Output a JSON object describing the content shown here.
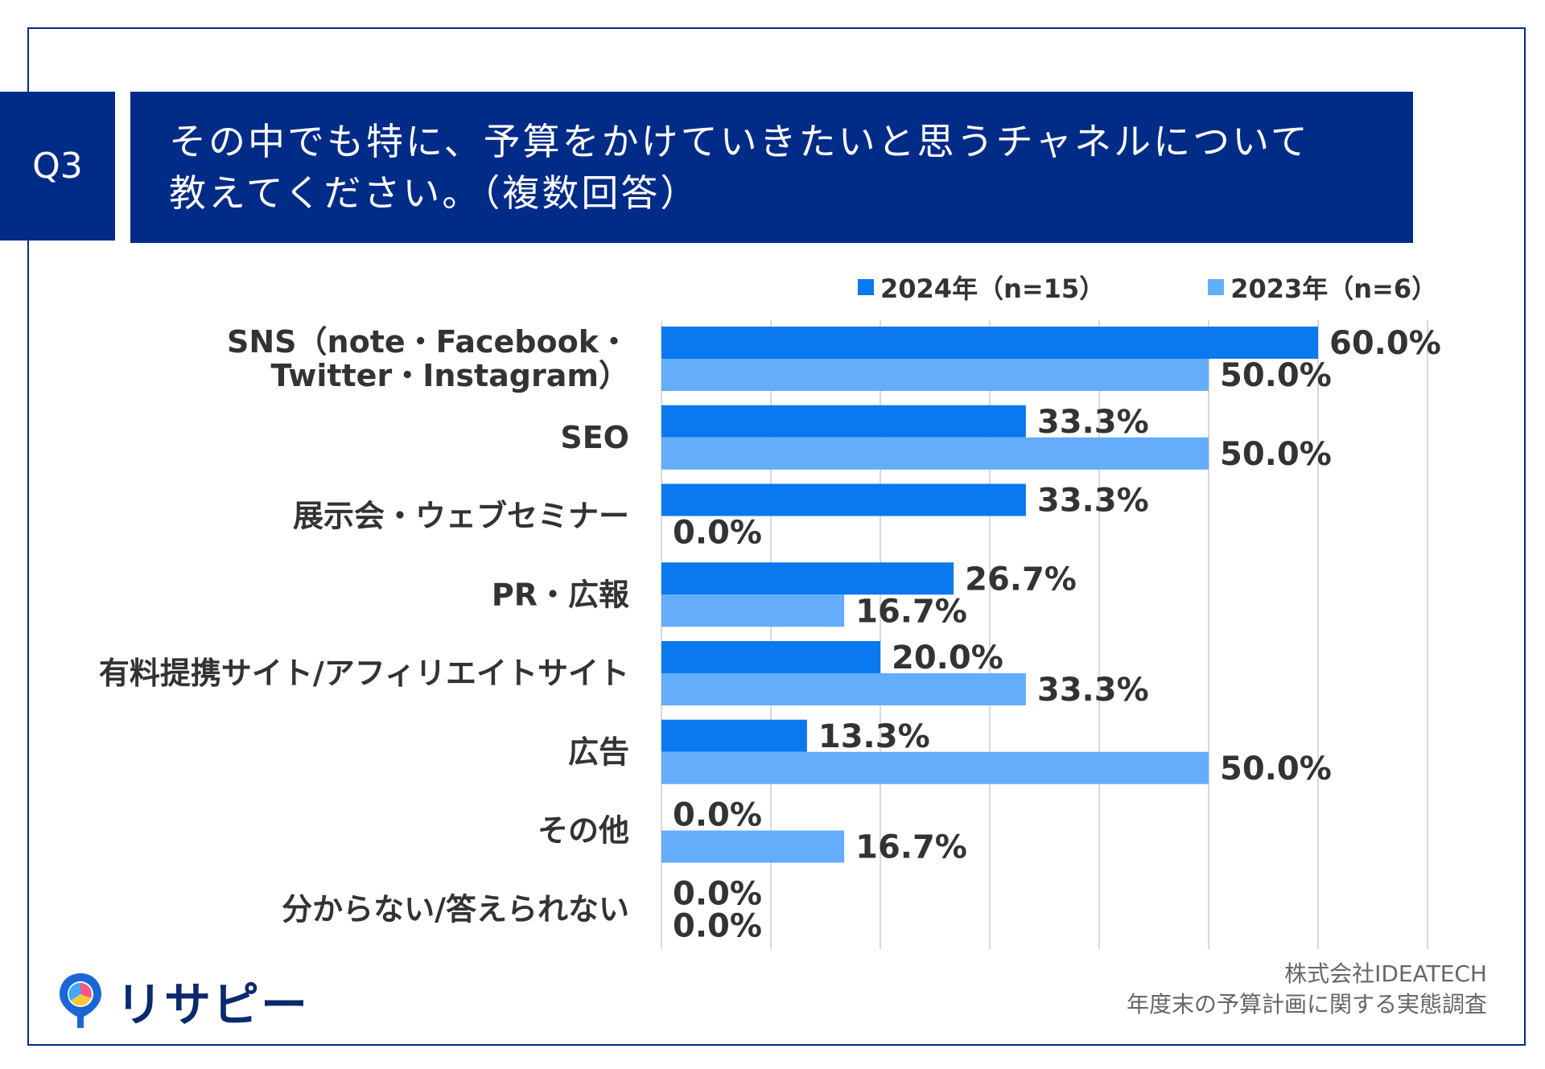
{
  "header": {
    "q_label": "Q3",
    "title_line1": "その中でも特に、予算をかけていきたいと思うチャネルについて",
    "title_line2": "教えてください。（複数回答）"
  },
  "legend": [
    {
      "label": "2024年（n=15）",
      "color": "#0a78ee"
    },
    {
      "label": "2023年（n=6）",
      "color": "#64adfb"
    }
  ],
  "chart_data": {
    "type": "bar",
    "orientation": "horizontal",
    "categories": [
      [
        "SNS（note・Facebook・",
        "Twitter・Instagram）"
      ],
      [
        "SEO"
      ],
      [
        "展示会・ウェブセミナー"
      ],
      [
        "PR・広報"
      ],
      [
        "有料提携サイト/アフィリエイトサイト"
      ],
      [
        "広告"
      ],
      [
        "その他"
      ],
      [
        "分からない/答えられない"
      ]
    ],
    "series": [
      {
        "name": "2024年（n=15）",
        "color": "#0a78ee",
        "values": [
          60.0,
          33.3,
          33.3,
          26.7,
          20.0,
          13.3,
          0.0,
          0.0
        ],
        "labels": [
          "60.0%",
          "33.3%",
          "33.3%",
          "26.7%",
          "20.0%",
          "13.3%",
          "0.0%",
          "0.0%"
        ]
      },
      {
        "name": "2023年（n=6）",
        "color": "#64adfb",
        "values": [
          50.0,
          50.0,
          0.0,
          16.7,
          33.3,
          50.0,
          16.7,
          0.0
        ],
        "labels": [
          "50.0%",
          "50.0%",
          "0.0%",
          "16.7%",
          "33.3%",
          "50.0%",
          "16.7%",
          "0.0%"
        ]
      }
    ],
    "xlim": [
      0,
      70
    ],
    "grid_step": 10,
    "grid": true,
    "legend_position": "top-right"
  },
  "footer": {
    "company": "株式会社IDEATECH",
    "survey": "年度末の予算計画に関する実態調査"
  },
  "logo": {
    "text": "リサピー"
  }
}
